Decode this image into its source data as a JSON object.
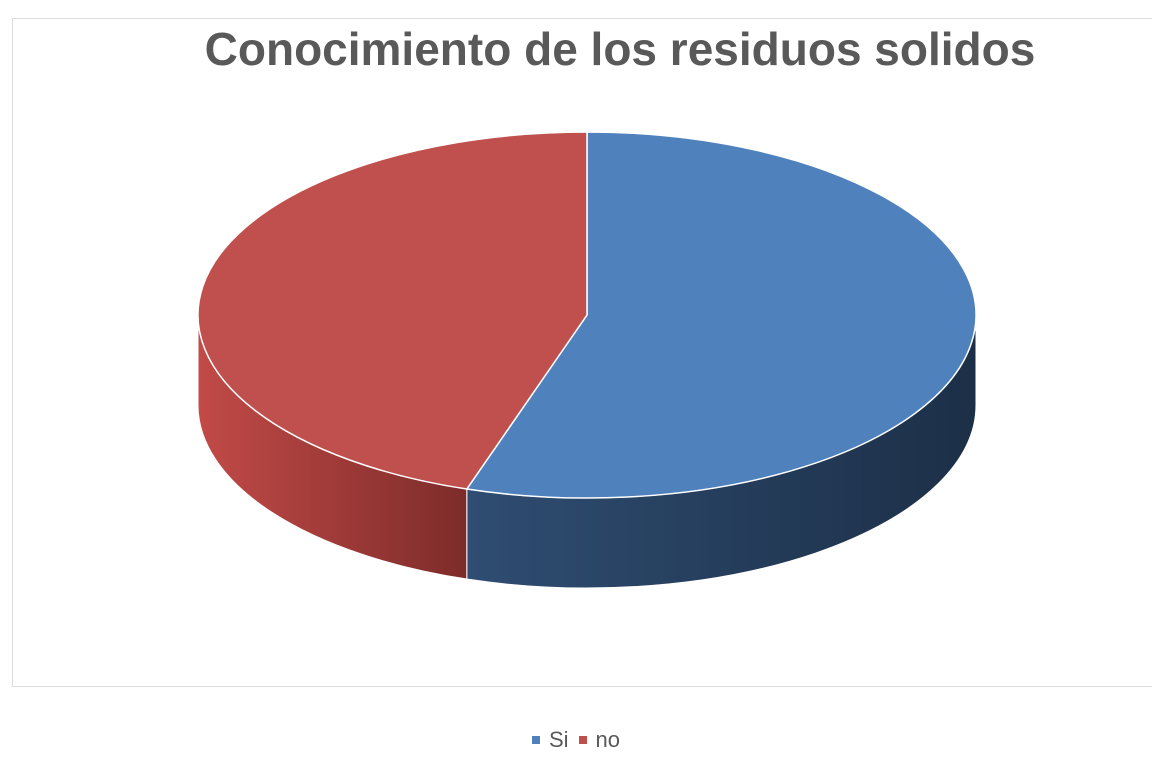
{
  "chart_data": {
    "type": "pie",
    "title": "Conocimiento de los residuos solidos",
    "legend_position": "bottom",
    "slices": [
      {
        "name": "Si",
        "value": 55,
        "color": "#4f81bd"
      },
      {
        "name": "no",
        "value": 45,
        "color": "#c0504d"
      }
    ]
  }
}
